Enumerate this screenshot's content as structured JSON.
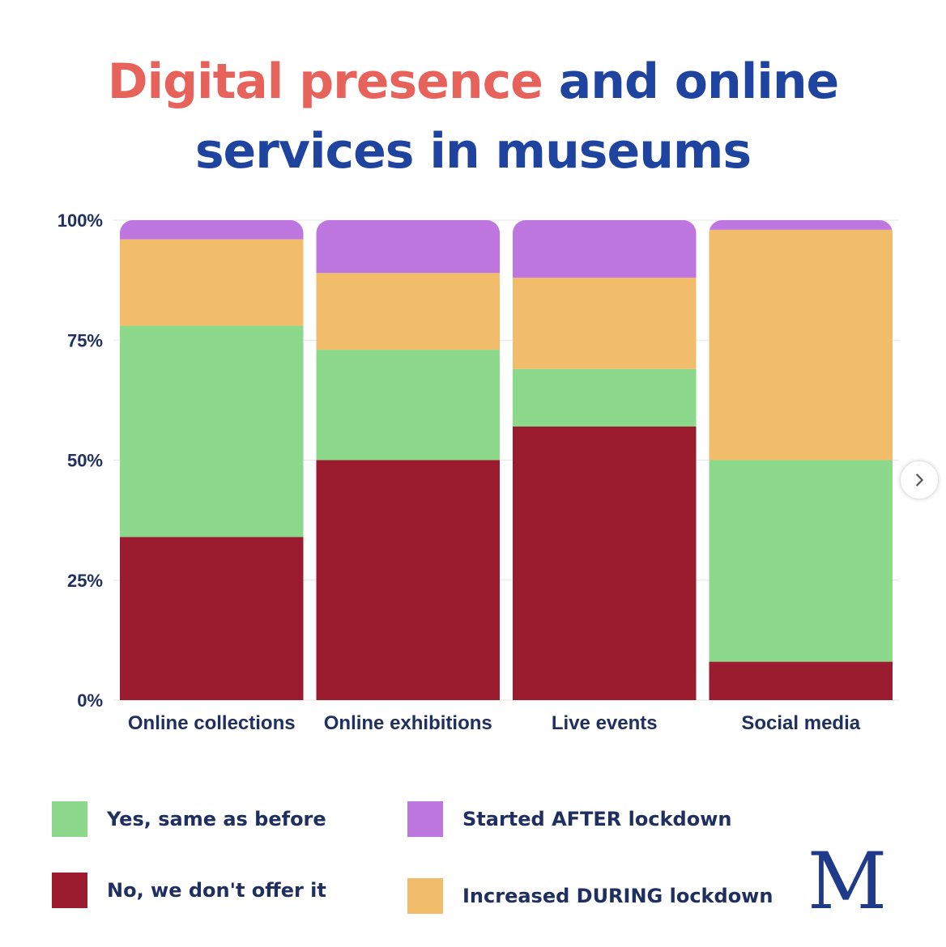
{
  "title": {
    "part1": "Digital presence",
    "part2": "and online",
    "line2": "services in museums",
    "color_part1": "#e8625c",
    "color_part2": "#1f44a0"
  },
  "chart_data": {
    "type": "bar",
    "stacked": true,
    "categories": [
      "Online collections",
      "Online exhibitions",
      "Live events",
      "Social media"
    ],
    "ylim": [
      0,
      100
    ],
    "yticks": [
      "0%",
      "25%",
      "50%",
      "75%",
      "100%"
    ],
    "series": [
      {
        "name": "No, we don't offer it",
        "color": "#9b1c2e",
        "values": [
          34,
          50,
          57,
          8
        ]
      },
      {
        "name": "Yes, same as before",
        "color": "#8cd98c",
        "values": [
          44,
          23,
          12,
          42
        ]
      },
      {
        "name": "Increased DURING lockdown",
        "color": "#f2bd6b",
        "values": [
          18,
          16,
          19,
          48
        ]
      },
      {
        "name": "Started AFTER lockdown",
        "color": "#bf77e0",
        "values": [
          4,
          11,
          12,
          2
        ]
      }
    ],
    "grid": true,
    "legend": "bottom"
  },
  "legend": [
    {
      "label": "Yes, same as before",
      "color": "#8cd98c"
    },
    {
      "label": "Started AFTER lockdown",
      "color": "#bf77e0"
    },
    {
      "label": "No, we don't offer it",
      "color": "#9b1c2e"
    },
    {
      "label": "Increased DURING lockdown",
      "color": "#f2bd6b"
    }
  ],
  "logo_text": "M",
  "next_icon": "chevron-right-icon"
}
